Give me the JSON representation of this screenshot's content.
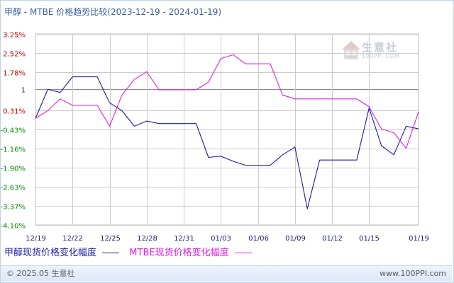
{
  "title": "甲醇 - MTBE 价格趋势比较(2023-12-19 - 2024-01-19)",
  "watermark": {
    "name": "生意社",
    "site": "100PPI.COM"
  },
  "footer": {
    "copyright": "© 2025.05 生意社",
    "url": "www.100PPI.com"
  },
  "colors": {
    "series1": "#1a1aa6",
    "series2": "#e020e0",
    "ytick_red": "#cc0000",
    "ytick_green": "#008800",
    "ytick_blue": "#1a1aa6",
    "grid": "#cccccc",
    "baseline": "#888888"
  },
  "chart_data": {
    "type": "line",
    "title": "甲醇 - MTBE 价格趋势比较(2023-12-19 - 2024-01-19)",
    "ylim": [
      -4.1,
      3.25
    ],
    "baseline": 0,
    "yticks": [
      {
        "label": "3.25%",
        "value": 3.25,
        "color": "red"
      },
      {
        "label": "2.52%",
        "value": 2.52,
        "color": "red"
      },
      {
        "label": "1.78%",
        "value": 1.78,
        "color": "red"
      },
      {
        "label": "1",
        "value": 1.12,
        "color": "black"
      },
      {
        "label": "0.31%",
        "value": 0.31,
        "color": "red"
      },
      {
        "label": "-0.43%",
        "value": -0.43,
        "color": "green"
      },
      {
        "label": "-1.16%",
        "value": -1.16,
        "color": "green"
      },
      {
        "label": "-1.90%",
        "value": -1.9,
        "color": "green"
      },
      {
        "label": "-2.63%",
        "value": -2.63,
        "color": "green"
      },
      {
        "label": "-3.37%",
        "value": -3.37,
        "color": "green"
      },
      {
        "label": "-4.10%",
        "value": -4.1,
        "color": "green"
      }
    ],
    "xticks": [
      "12/19",
      "12/22",
      "12/25",
      "12/28",
      "12/31",
      "01/03",
      "01/06",
      "01/09",
      "01/12",
      "01/15",
      "01/19"
    ],
    "xtick_days": [
      0,
      3,
      6,
      9,
      12,
      15,
      18,
      21,
      24,
      27,
      31
    ],
    "days": [
      0,
      1,
      2,
      3,
      4,
      5,
      6,
      7,
      8,
      9,
      10,
      11,
      12,
      13,
      14,
      15,
      16,
      17,
      18,
      19,
      20,
      21,
      22,
      23,
      24,
      25,
      26,
      27,
      28,
      29,
      30,
      31
    ],
    "series": [
      {
        "name": "甲醇现货价格变化幅度",
        "values": [
          0.0,
          1.12,
          1.0,
          1.6,
          1.6,
          1.6,
          0.6,
          0.3,
          -0.3,
          -0.1,
          -0.2,
          -0.2,
          -0.2,
          -0.2,
          -1.5,
          -1.45,
          -1.65,
          -1.8,
          -1.8,
          -1.8,
          -1.4,
          -1.1,
          -3.48,
          -1.6,
          -1.6,
          -1.6,
          -1.6,
          0.4,
          -1.05,
          -1.4,
          -0.3,
          -0.4
        ]
      },
      {
        "name": "MTBE现货价格变化幅度",
        "values": [
          0.0,
          0.3,
          0.75,
          0.5,
          0.5,
          0.5,
          -0.3,
          0.9,
          1.5,
          1.8,
          1.1,
          1.1,
          1.1,
          1.1,
          1.4,
          2.3,
          2.45,
          2.1,
          2.1,
          2.1,
          0.9,
          0.75,
          0.75,
          0.75,
          0.75,
          0.75,
          0.75,
          0.45,
          -0.4,
          -0.55,
          -1.15,
          0.25
        ]
      }
    ],
    "legend_position": "bottom-left",
    "grid": true
  }
}
